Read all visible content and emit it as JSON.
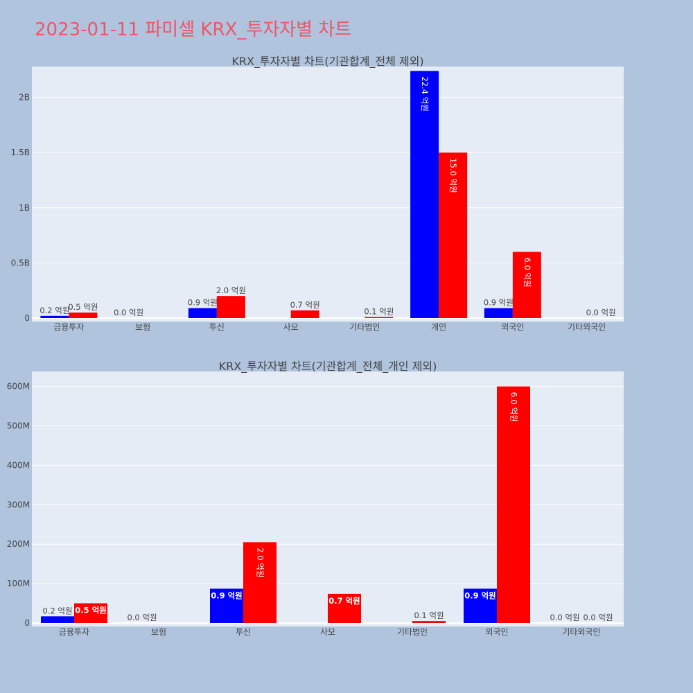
{
  "page_title": "2023-01-11 파미셀 KRX_투자자별 차트",
  "colors": {
    "series_a": "#0000ff",
    "series_b": "#ff0000",
    "plot_bg": "#e5ecf6",
    "page_bg": "#b0c4de",
    "title": "#ee5566"
  },
  "chart_data": [
    {
      "type": "bar",
      "title": "KRX_투자자별 차트(기관합계_전체 제외)",
      "categories": [
        "금융투자",
        "보험",
        "투신",
        "사모",
        "기타법인",
        "개인",
        "외국인",
        "기타외국인"
      ],
      "y_ticks": [
        {
          "value": 0,
          "label": "0"
        },
        {
          "value": 500000000,
          "label": "0.5B"
        },
        {
          "value": 1000000000,
          "label": "1B"
        },
        {
          "value": 1500000000,
          "label": "1.5B"
        },
        {
          "value": 2000000000,
          "label": "2B"
        }
      ],
      "ylim": [
        0,
        2280000000
      ],
      "grid": true,
      "series": [
        {
          "values": [
            20000000,
            0,
            90000000,
            null,
            0,
            2240000000,
            90000000,
            null
          ],
          "labels": [
            "0.2 억원",
            "0.0 억원",
            "0.9 억원",
            null,
            "",
            "22.4 억원",
            "0.9 억원",
            null
          ]
        },
        {
          "values": [
            50000000,
            null,
            200000000,
            70000000,
            10000000,
            1500000000,
            600000000,
            0
          ],
          "labels": [
            "0.5 억원",
            null,
            "2.0 억원",
            "0.7 억원",
            "0.1 억원",
            "15.0 억원",
            "6.0 억원",
            "0.0 억원"
          ]
        }
      ]
    },
    {
      "type": "bar",
      "title": "KRX_투자자별 차트(기관합계_전체_개인 제외)",
      "categories": [
        "금융투자",
        "보험",
        "투신",
        "사모",
        "기타법인",
        "외국인",
        "기타외국인"
      ],
      "y_ticks": [
        {
          "value": 0,
          "label": "0"
        },
        {
          "value": 100000000,
          "label": "100M"
        },
        {
          "value": 200000000,
          "label": "200M"
        },
        {
          "value": 300000000,
          "label": "300M"
        },
        {
          "value": 400000000,
          "label": "400M"
        },
        {
          "value": 500000000,
          "label": "500M"
        },
        {
          "value": 600000000,
          "label": "600M"
        }
      ],
      "ylim": [
        0,
        638000000
      ],
      "grid": true,
      "series": [
        {
          "values": [
            17000000,
            0,
            87000000,
            null,
            0,
            87000000,
            0
          ],
          "labels": [
            "0.2 억원",
            "0.0 억원",
            "0.9 억원",
            null,
            "",
            "0.9 억원",
            "0.0 억원"
          ]
        },
        {
          "values": [
            50000000,
            null,
            205000000,
            74000000,
            5000000,
            600000000,
            0
          ],
          "labels": [
            "0.5 억원",
            null,
            "2.0 억원",
            "0.7 억원",
            "0.1 억원",
            "6.0 억원",
            "0.0 억원"
          ]
        }
      ]
    }
  ]
}
